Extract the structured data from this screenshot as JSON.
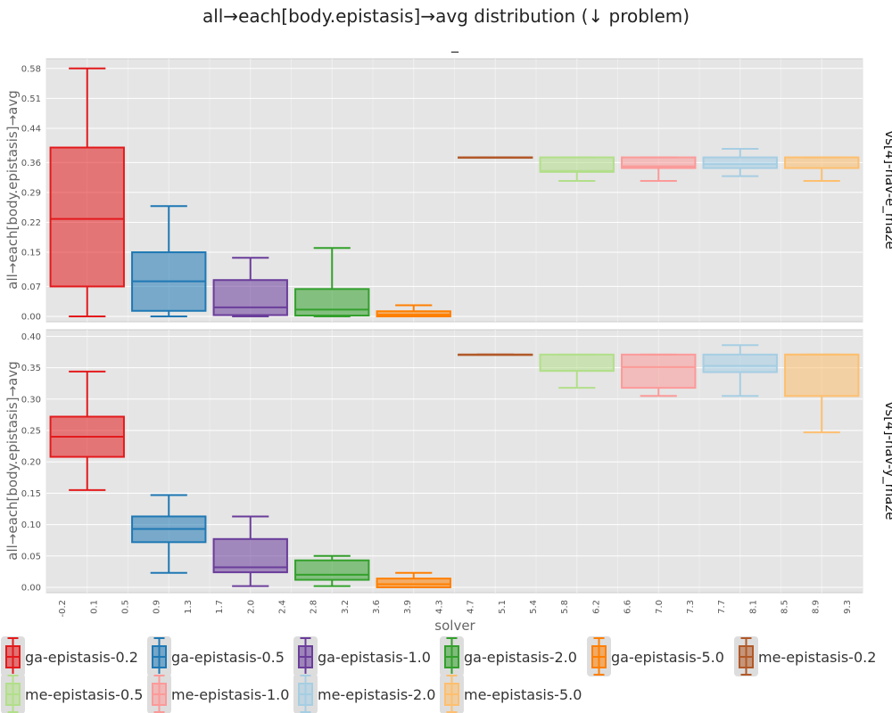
{
  "chart_data": {
    "type": "box",
    "title": "all→each[body.epistasis]→avg distribution (↓ problem)",
    "subtitle": "_",
    "xlabel": "solver",
    "ylabel": "all→each[body.epistasis]→avg",
    "x_ticks": [
      "-0.2",
      "0.1",
      "0.5",
      "0.9",
      "1.3",
      "1.7",
      "2.0",
      "2.4",
      "2.8",
      "3.2",
      "3.6",
      "3.9",
      "4.3",
      "4.7",
      "5.1",
      "5.4",
      "5.8",
      "6.2",
      "6.6",
      "7.0",
      "7.3",
      "7.7",
      "8.1",
      "8.5",
      "8.9",
      "9.3"
    ],
    "grid": true,
    "legend": {
      "position": "bottom",
      "entries": [
        {
          "name": "ga-epistasis-0.2",
          "color": "#e31a1c"
        },
        {
          "name": "ga-epistasis-0.5",
          "color": "#1f78b4"
        },
        {
          "name": "ga-epistasis-1.0",
          "color": "#6a3d9a"
        },
        {
          "name": "ga-epistasis-2.0",
          "color": "#33a02c"
        },
        {
          "name": "ga-epistasis-5.0",
          "color": "#ff7f00"
        },
        {
          "name": "me-epistasis-0.2",
          "color": "#b15928"
        },
        {
          "name": "me-epistasis-0.5",
          "color": "#b2df8a"
        },
        {
          "name": "me-epistasis-1.0",
          "color": "#fb9a99"
        },
        {
          "name": "me-epistasis-2.0",
          "color": "#a6cee3"
        },
        {
          "name": "me-epistasis-5.0",
          "color": "#fdbf6f"
        }
      ]
    },
    "panels": [
      {
        "facet_label": "vs[4]-nav-e_maze",
        "ylim": [
          0.0,
          0.59
        ],
        "y_ticks": [
          "0.00",
          "0.07",
          "0.15",
          "0.22",
          "0.29",
          "0.36",
          "0.44",
          "0.51",
          "0.58"
        ],
        "boxes": [
          {
            "series": "ga-epistasis-0.2",
            "min": 0.0,
            "q1": 0.07,
            "median": 0.228,
            "q3": 0.395,
            "max": 0.58
          },
          {
            "series": "ga-epistasis-0.5",
            "min": 0.0,
            "q1": 0.013,
            "median": 0.082,
            "q3": 0.15,
            "max": 0.258
          },
          {
            "series": "ga-epistasis-1.0",
            "min": 0.0,
            "q1": 0.003,
            "median": 0.021,
            "q3": 0.085,
            "max": 0.137
          },
          {
            "series": "ga-epistasis-2.0",
            "min": 0.0,
            "q1": 0.002,
            "median": 0.016,
            "q3": 0.064,
            "max": 0.16
          },
          {
            "series": "ga-epistasis-5.0",
            "min": 0.0,
            "q1": 0.0,
            "median": 0.004,
            "q3": 0.012,
            "max": 0.026
          },
          {
            "series": "me-epistasis-0.2",
            "min": 0.372,
            "q1": 0.372,
            "median": 0.372,
            "q3": 0.372,
            "max": 0.372
          },
          {
            "series": "me-epistasis-0.5",
            "min": 0.317,
            "q1": 0.338,
            "median": 0.34,
            "q3": 0.372,
            "max": 0.372
          },
          {
            "series": "me-epistasis-1.0",
            "min": 0.317,
            "q1": 0.347,
            "median": 0.351,
            "q3": 0.372,
            "max": 0.372
          },
          {
            "series": "me-epistasis-2.0",
            "min": 0.328,
            "q1": 0.347,
            "median": 0.356,
            "q3": 0.372,
            "max": 0.392
          },
          {
            "series": "me-epistasis-5.0",
            "min": 0.317,
            "q1": 0.347,
            "median": 0.347,
            "q3": 0.372,
            "max": 0.372
          }
        ]
      },
      {
        "facet_label": "vs[4]-nav-y_maze",
        "ylim": [
          0.0,
          0.402
        ],
        "y_ticks": [
          "0.00",
          "0.05",
          "0.10",
          "0.15",
          "0.20",
          "0.25",
          "0.30",
          "0.35",
          "0.40"
        ],
        "boxes": [
          {
            "series": "ga-epistasis-0.2",
            "min": 0.155,
            "q1": 0.208,
            "median": 0.24,
            "q3": 0.272,
            "max": 0.344
          },
          {
            "series": "ga-epistasis-0.5",
            "min": 0.023,
            "q1": 0.072,
            "median": 0.093,
            "q3": 0.113,
            "max": 0.147
          },
          {
            "series": "ga-epistasis-1.0",
            "min": 0.002,
            "q1": 0.024,
            "median": 0.032,
            "q3": 0.077,
            "max": 0.113
          },
          {
            "series": "ga-epistasis-2.0",
            "min": 0.002,
            "q1": 0.012,
            "median": 0.02,
            "q3": 0.043,
            "max": 0.05
          },
          {
            "series": "ga-epistasis-5.0",
            "min": 0.0,
            "q1": 0.0,
            "median": 0.005,
            "q3": 0.014,
            "max": 0.023
          },
          {
            "series": "me-epistasis-0.2",
            "min": 0.371,
            "q1": 0.371,
            "median": 0.371,
            "q3": 0.371,
            "max": 0.371
          },
          {
            "series": "me-epistasis-0.5",
            "min": 0.318,
            "q1": 0.345,
            "median": 0.345,
            "q3": 0.371,
            "max": 0.371
          },
          {
            "series": "me-epistasis-1.0",
            "min": 0.305,
            "q1": 0.318,
            "median": 0.351,
            "q3": 0.371,
            "max": 0.371
          },
          {
            "series": "me-epistasis-2.0",
            "min": 0.305,
            "q1": 0.343,
            "median": 0.353,
            "q3": 0.371,
            "max": 0.386
          },
          {
            "series": "me-epistasis-5.0",
            "min": 0.247,
            "q1": 0.305,
            "median": 0.371,
            "q3": 0.371,
            "max": 0.371
          }
        ]
      }
    ]
  }
}
